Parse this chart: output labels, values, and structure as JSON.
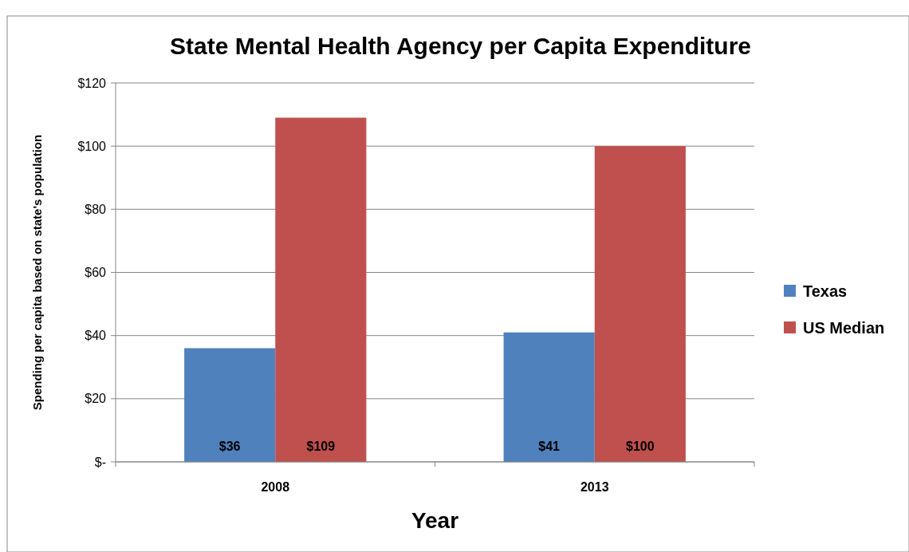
{
  "chart_data": {
    "type": "bar",
    "title": "State Mental Health Agency per Capita Expenditure",
    "xlabel": "Year",
    "ylabel": "Spending per capita  based on state's population",
    "categories": [
      "2008",
      "2013"
    ],
    "series": [
      {
        "name": "Texas",
        "color": "#4f81bd",
        "values": [
          36,
          41
        ]
      },
      {
        "name": "US Median",
        "color": "#c0504d",
        "values": [
          109,
          100
        ]
      }
    ],
    "ylim": [
      0,
      120
    ],
    "yticks": [
      {
        "value": 0,
        "label": "$-"
      },
      {
        "value": 20,
        "label": "$20"
      },
      {
        "value": 40,
        "label": "$40"
      },
      {
        "value": 60,
        "label": "$60"
      },
      {
        "value": 80,
        "label": "$80"
      },
      {
        "value": 100,
        "label": "$100"
      },
      {
        "value": 120,
        "label": "$120"
      }
    ],
    "grid": "y",
    "legend": "right",
    "value_labels": [
      [
        "$36",
        "$41"
      ],
      [
        "$109",
        "$100"
      ]
    ]
  }
}
